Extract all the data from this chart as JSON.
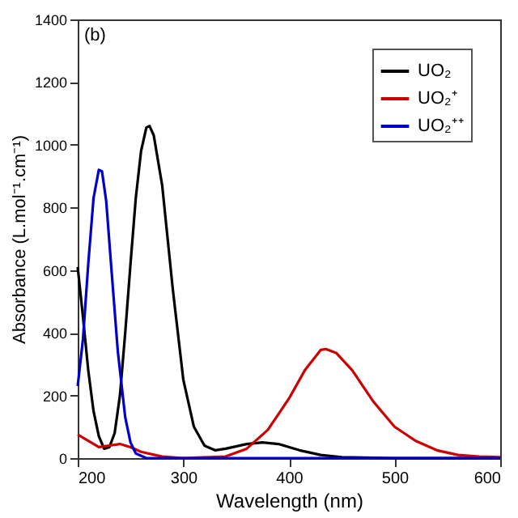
{
  "chart_data": {
    "type": "line",
    "xlabel": "Wavelength (nm)",
    "ylabel": "Absorbance (L.mol⁻¹.cm⁻¹)",
    "annotations": [
      "(b)"
    ],
    "xlim": [
      200,
      600
    ],
    "xticks": [
      200,
      300,
      400,
      500,
      600
    ],
    "ylim": [
      0,
      1400
    ],
    "yticks": [
      0,
      200,
      400,
      600,
      800,
      1000,
      1200,
      1400
    ],
    "grid": false,
    "legend": "top right",
    "marker": "none",
    "line_style": "solid",
    "series": [
      {
        "name": "UO₂",
        "color": "#000000",
        "x": [
          200,
          205,
          210,
          215,
          220,
          225,
          230,
          235,
          240,
          245,
          250,
          255,
          260,
          265,
          268,
          272,
          280,
          290,
          300,
          310,
          320,
          330,
          340,
          360,
          375,
          390,
          410,
          430,
          450,
          500,
          600
        ],
        "values": [
          610,
          450,
          280,
          150,
          70,
          30,
          35,
          80,
          200,
          400,
          620,
          830,
          980,
          1055,
          1060,
          1030,
          870,
          540,
          250,
          100,
          40,
          25,
          30,
          45,
          50,
          45,
          25,
          10,
          3,
          0,
          0
        ]
      },
      {
        "name": "UO₂⁺",
        "color": "#cc0000",
        "x": [
          200,
          210,
          220,
          230,
          240,
          250,
          260,
          280,
          300,
          340,
          360,
          380,
          400,
          415,
          430,
          435,
          445,
          460,
          480,
          500,
          520,
          540,
          560,
          580,
          600
        ],
        "values": [
          75,
          55,
          35,
          40,
          45,
          35,
          20,
          5,
          0,
          5,
          30,
          90,
          190,
          280,
          345,
          348,
          335,
          280,
          180,
          100,
          55,
          25,
          10,
          5,
          3
        ]
      },
      {
        "name": "UO₂⁺⁺",
        "color": "#0000cc",
        "x": [
          200,
          205,
          210,
          215,
          220,
          223,
          227,
          232,
          238,
          245,
          250,
          255,
          265,
          300,
          400,
          600
        ],
        "values": [
          230,
          380,
          620,
          830,
          920,
          915,
          820,
          600,
          340,
          130,
          50,
          15,
          0,
          0,
          0,
          0
        ]
      }
    ]
  }
}
